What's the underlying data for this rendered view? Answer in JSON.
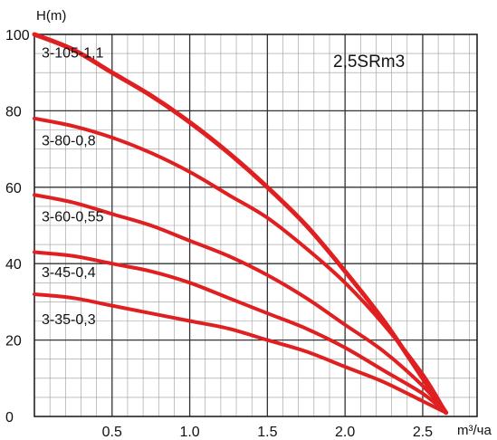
{
  "chart_data": {
    "type": "line",
    "title": "2,5SRm3",
    "ylabel": "H(m)",
    "xlabel": "m³/ча",
    "xlim": [
      0,
      2.85
    ],
    "ylim": [
      0,
      100
    ],
    "x_ticks": [
      "0.5",
      "1.0",
      "1.5",
      "2.0",
      "2.5"
    ],
    "x_tick_values": [
      0.5,
      1.0,
      1.5,
      2.0,
      2.5
    ],
    "y_ticks": [
      "0",
      "20",
      "40",
      "60",
      "80",
      "100"
    ],
    "y_tick_values": [
      0,
      20,
      40,
      60,
      80,
      100
    ],
    "grid": true,
    "line_color": "#e02020",
    "series": [
      {
        "name": "3-105-1,1",
        "x": [
          0,
          0.25,
          0.5,
          0.75,
          1.0,
          1.25,
          1.5,
          1.75,
          2.0,
          2.25,
          2.5,
          2.65
        ],
        "y": [
          100,
          96,
          90,
          84,
          77,
          69,
          60,
          50,
          38,
          25,
          10,
          1
        ]
      },
      {
        "name": "3-80-0,8",
        "x": [
          0,
          0.25,
          0.5,
          0.75,
          1.0,
          1.25,
          1.5,
          1.75,
          2.0,
          2.25,
          2.5,
          2.65
        ],
        "y": [
          78,
          76,
          73,
          69,
          64,
          58,
          52,
          44,
          35,
          24,
          11,
          1
        ]
      },
      {
        "name": "3-60-0,55",
        "x": [
          0,
          0.25,
          0.5,
          0.75,
          1.0,
          1.25,
          1.5,
          1.75,
          2.0,
          2.25,
          2.5,
          2.65
        ],
        "y": [
          58,
          56,
          53,
          50,
          46,
          42,
          37,
          31,
          24,
          17,
          8,
          1
        ]
      },
      {
        "name": "3-45-0,4",
        "x": [
          0,
          0.25,
          0.5,
          0.75,
          1.0,
          1.25,
          1.5,
          1.75,
          2.0,
          2.25,
          2.5,
          2.65
        ],
        "y": [
          43,
          42,
          40,
          38,
          35,
          31,
          27,
          23,
          18,
          12,
          6,
          1
        ]
      },
      {
        "name": "3-35-0,3",
        "x": [
          0,
          0.25,
          0.5,
          0.75,
          1.0,
          1.25,
          1.5,
          1.75,
          2.0,
          2.25,
          2.5,
          2.65
        ],
        "y": [
          32,
          31,
          29,
          27,
          25,
          23,
          20,
          17,
          13,
          9,
          4,
          1
        ]
      }
    ]
  }
}
